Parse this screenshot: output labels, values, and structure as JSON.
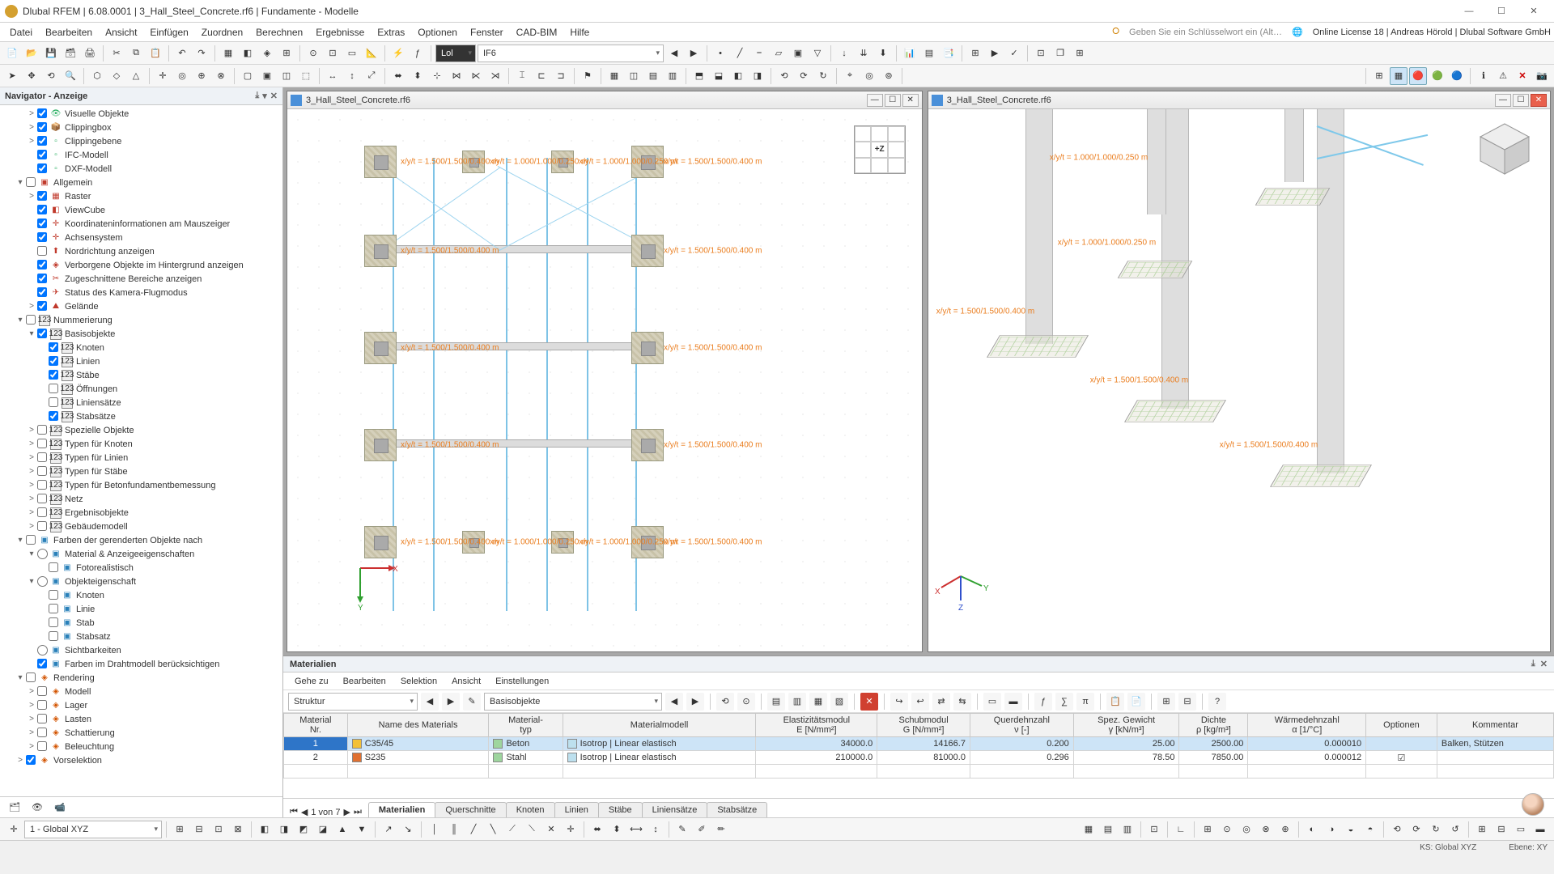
{
  "titlebar": {
    "title": "Dlubal RFEM | 6.08.0001 | 3_Hall_Steel_Concrete.rf6 | Fundamente - Modelle"
  },
  "menu": {
    "items": [
      "Datei",
      "Bearbeiten",
      "Ansicht",
      "Einfügen",
      "Zuordnen",
      "Berechnen",
      "Ergebnisse",
      "Extras",
      "Optionen",
      "Fenster",
      "CAD-BIM",
      "Hilfe"
    ],
    "keyhint": "Geben Sie ein Schlüsselwort ein (Alt…",
    "license": "Online License 18 | Andreas Hörold | Dlubal Software GmbH"
  },
  "toolbars": {
    "combo1": "Lol",
    "combo2": "IF6"
  },
  "navigator": {
    "title": "Navigator - Anzeige",
    "groups": {
      "visual": [
        {
          "label": "Visuelle Objekte",
          "checked": true,
          "glyph": "👁",
          "depth": 2,
          "exp": ">"
        },
        {
          "label": "Clippingbox",
          "checked": true,
          "glyph": "📦",
          "depth": 2,
          "exp": ">"
        },
        {
          "label": "Clippingebene",
          "checked": true,
          "glyph": "▫",
          "depth": 2,
          "exp": ">"
        },
        {
          "label": "IFC-Modell",
          "checked": true,
          "glyph": "▫",
          "depth": 2,
          "exp": ""
        },
        {
          "label": "DXF-Modell",
          "checked": true,
          "glyph": "▫",
          "depth": 2,
          "exp": ""
        }
      ],
      "allgemein_label": "Allgemein",
      "allgemein": [
        {
          "label": "Raster",
          "checked": true,
          "glyph": "▦",
          "depth": 2,
          "exp": ">"
        },
        {
          "label": "ViewCube",
          "checked": true,
          "glyph": "◧",
          "depth": 2,
          "exp": ""
        },
        {
          "label": "Koordinateninformationen am Mauszeiger",
          "checked": true,
          "glyph": "✛",
          "depth": 2,
          "exp": ""
        },
        {
          "label": "Achsensystem",
          "checked": true,
          "glyph": "✛",
          "depth": 2,
          "exp": ""
        },
        {
          "label": "Nordrichtung anzeigen",
          "checked": false,
          "glyph": "⬆",
          "depth": 2,
          "exp": ""
        },
        {
          "label": "Verborgene Objekte im Hintergrund anzeigen",
          "checked": true,
          "glyph": "◈",
          "depth": 2,
          "exp": ""
        },
        {
          "label": "Zugeschnittene Bereiche anzeigen",
          "checked": true,
          "glyph": "✂",
          "depth": 2,
          "exp": ""
        },
        {
          "label": "Status des Kamera-Flugmodus",
          "checked": true,
          "glyph": "✈",
          "depth": 2,
          "exp": ""
        },
        {
          "label": "Gelände",
          "checked": true,
          "glyph": "⛰",
          "depth": 2,
          "exp": ">"
        }
      ],
      "nummerierung_label": "Nummerierung",
      "basisobjekte_label": "Basisobjekte",
      "basisobjekte": [
        {
          "label": "Knoten",
          "checked": true,
          "depth": 3
        },
        {
          "label": "Linien",
          "checked": true,
          "depth": 3
        },
        {
          "label": "Stäbe",
          "checked": true,
          "depth": 3
        },
        {
          "label": "Öffnungen",
          "checked": false,
          "depth": 3
        },
        {
          "label": "Liniensätze",
          "checked": false,
          "depth": 3
        },
        {
          "label": "Stabsätze",
          "checked": true,
          "depth": 3
        }
      ],
      "misc": [
        {
          "label": "Spezielle Objekte",
          "exp": ">",
          "depth": 2
        },
        {
          "label": "Typen für Knoten",
          "exp": ">",
          "depth": 2
        },
        {
          "label": "Typen für Linien",
          "exp": ">",
          "depth": 2
        },
        {
          "label": "Typen für Stäbe",
          "exp": ">",
          "depth": 2
        },
        {
          "label": "Typen für Betonfundamentbemessung",
          "exp": ">",
          "depth": 2
        },
        {
          "label": "Netz",
          "exp": ">",
          "depth": 2
        },
        {
          "label": "Ergebnisobjekte",
          "exp": ">",
          "depth": 2
        },
        {
          "label": "Gebäudemodell",
          "exp": ">",
          "depth": 2
        }
      ],
      "farben_label": "Farben der gerenderten Objekte nach",
      "material_label": "Material & Anzeigeeigenschaften",
      "fotorealistisch": "Fotorealistisch",
      "objekteig_label": "Objekteigenschaft",
      "objekteig": [
        {
          "label": "Knoten"
        },
        {
          "label": "Linie"
        },
        {
          "label": "Stab"
        },
        {
          "label": "Stabsatz"
        }
      ],
      "sichtbarkeiten": "Sichtbarkeiten",
      "draht": "Farben im Drahtmodell berücksichtigen",
      "rendering_label": "Rendering",
      "rendering": [
        {
          "label": "Modell",
          "exp": ">"
        },
        {
          "label": "Lager",
          "exp": ">"
        },
        {
          "label": "Lasten",
          "exp": ">"
        },
        {
          "label": "Schattierung",
          "exp": ">"
        },
        {
          "label": "Beleuchtung",
          "exp": ">"
        }
      ],
      "vorselektion": "Vorselektion"
    }
  },
  "views": {
    "tab_left": "3_Hall_Steel_Concrete.rf6",
    "tab_right": "3_Hall_Steel_Concrete.rf6",
    "labels": {
      "l1": "x/y/t = 1.500/1.500/0.400 m",
      "l2": "x/y/t = 1.000/1.000/0.250 m",
      "l3": "x/y/t = 1.500/1.500/0.400 m",
      "viewcube_center": "+Z"
    }
  },
  "materials": {
    "title": "Materialien",
    "menus": [
      "Gehe zu",
      "Bearbeiten",
      "Selektion",
      "Ansicht",
      "Einstellungen"
    ],
    "combo_left": "Struktur",
    "combo_right": "Basisobjekte",
    "pager": "1 von 7",
    "tabs": [
      "Knoten",
      "Linien",
      "Stäbe",
      "Liniensätze",
      "Stabsätze"
    ],
    "tabs_pre": [
      "Materialien",
      "Querschnitte"
    ],
    "columns": [
      "Material\nNr.",
      "Name des Materials",
      "Material-\ntyp",
      "Materialmodell",
      "Elastizitätsmodul\nE [N/mm²]",
      "Schubmodul\nG [N/mm²]",
      "Querdehnzahl\nν [-]",
      "Spez. Gewicht\nγ [kN/m³]",
      "Dichte\nρ [kg/m³]",
      "Wärmedehnzahl\nα [1/°C]",
      "Optionen",
      "Kommentar"
    ],
    "rows": [
      {
        "nr": "1",
        "name": "C35/45",
        "color": "#f2c038",
        "typ": "Beton",
        "typcolor": "#9ed59e",
        "modell": "Isotrop | Linear elastisch",
        "E": "34000.0",
        "G": "14166.7",
        "v": "0.200",
        "gamma": "25.00",
        "rho": "2500.00",
        "alpha": "0.000010",
        "opt": "",
        "komm": "Balken, Stützen"
      },
      {
        "nr": "2",
        "name": "S235",
        "color": "#e07030",
        "typ": "Stahl",
        "typcolor": "#9ed59e",
        "modell": "Isotrop | Linear elastisch",
        "E": "210000.0",
        "G": "81000.0",
        "v": "0.296",
        "gamma": "78.50",
        "rho": "7850.00",
        "alpha": "0.000012",
        "opt": "☑",
        "komm": ""
      }
    ]
  },
  "bottom": {
    "coord_combo": "1 - Global XYZ"
  },
  "status": {
    "ks": "KS: Global XYZ",
    "ebene": "Ebene: XY"
  },
  "colors": {
    "accent": "#2e75c8",
    "label": "#ea7d1e"
  }
}
